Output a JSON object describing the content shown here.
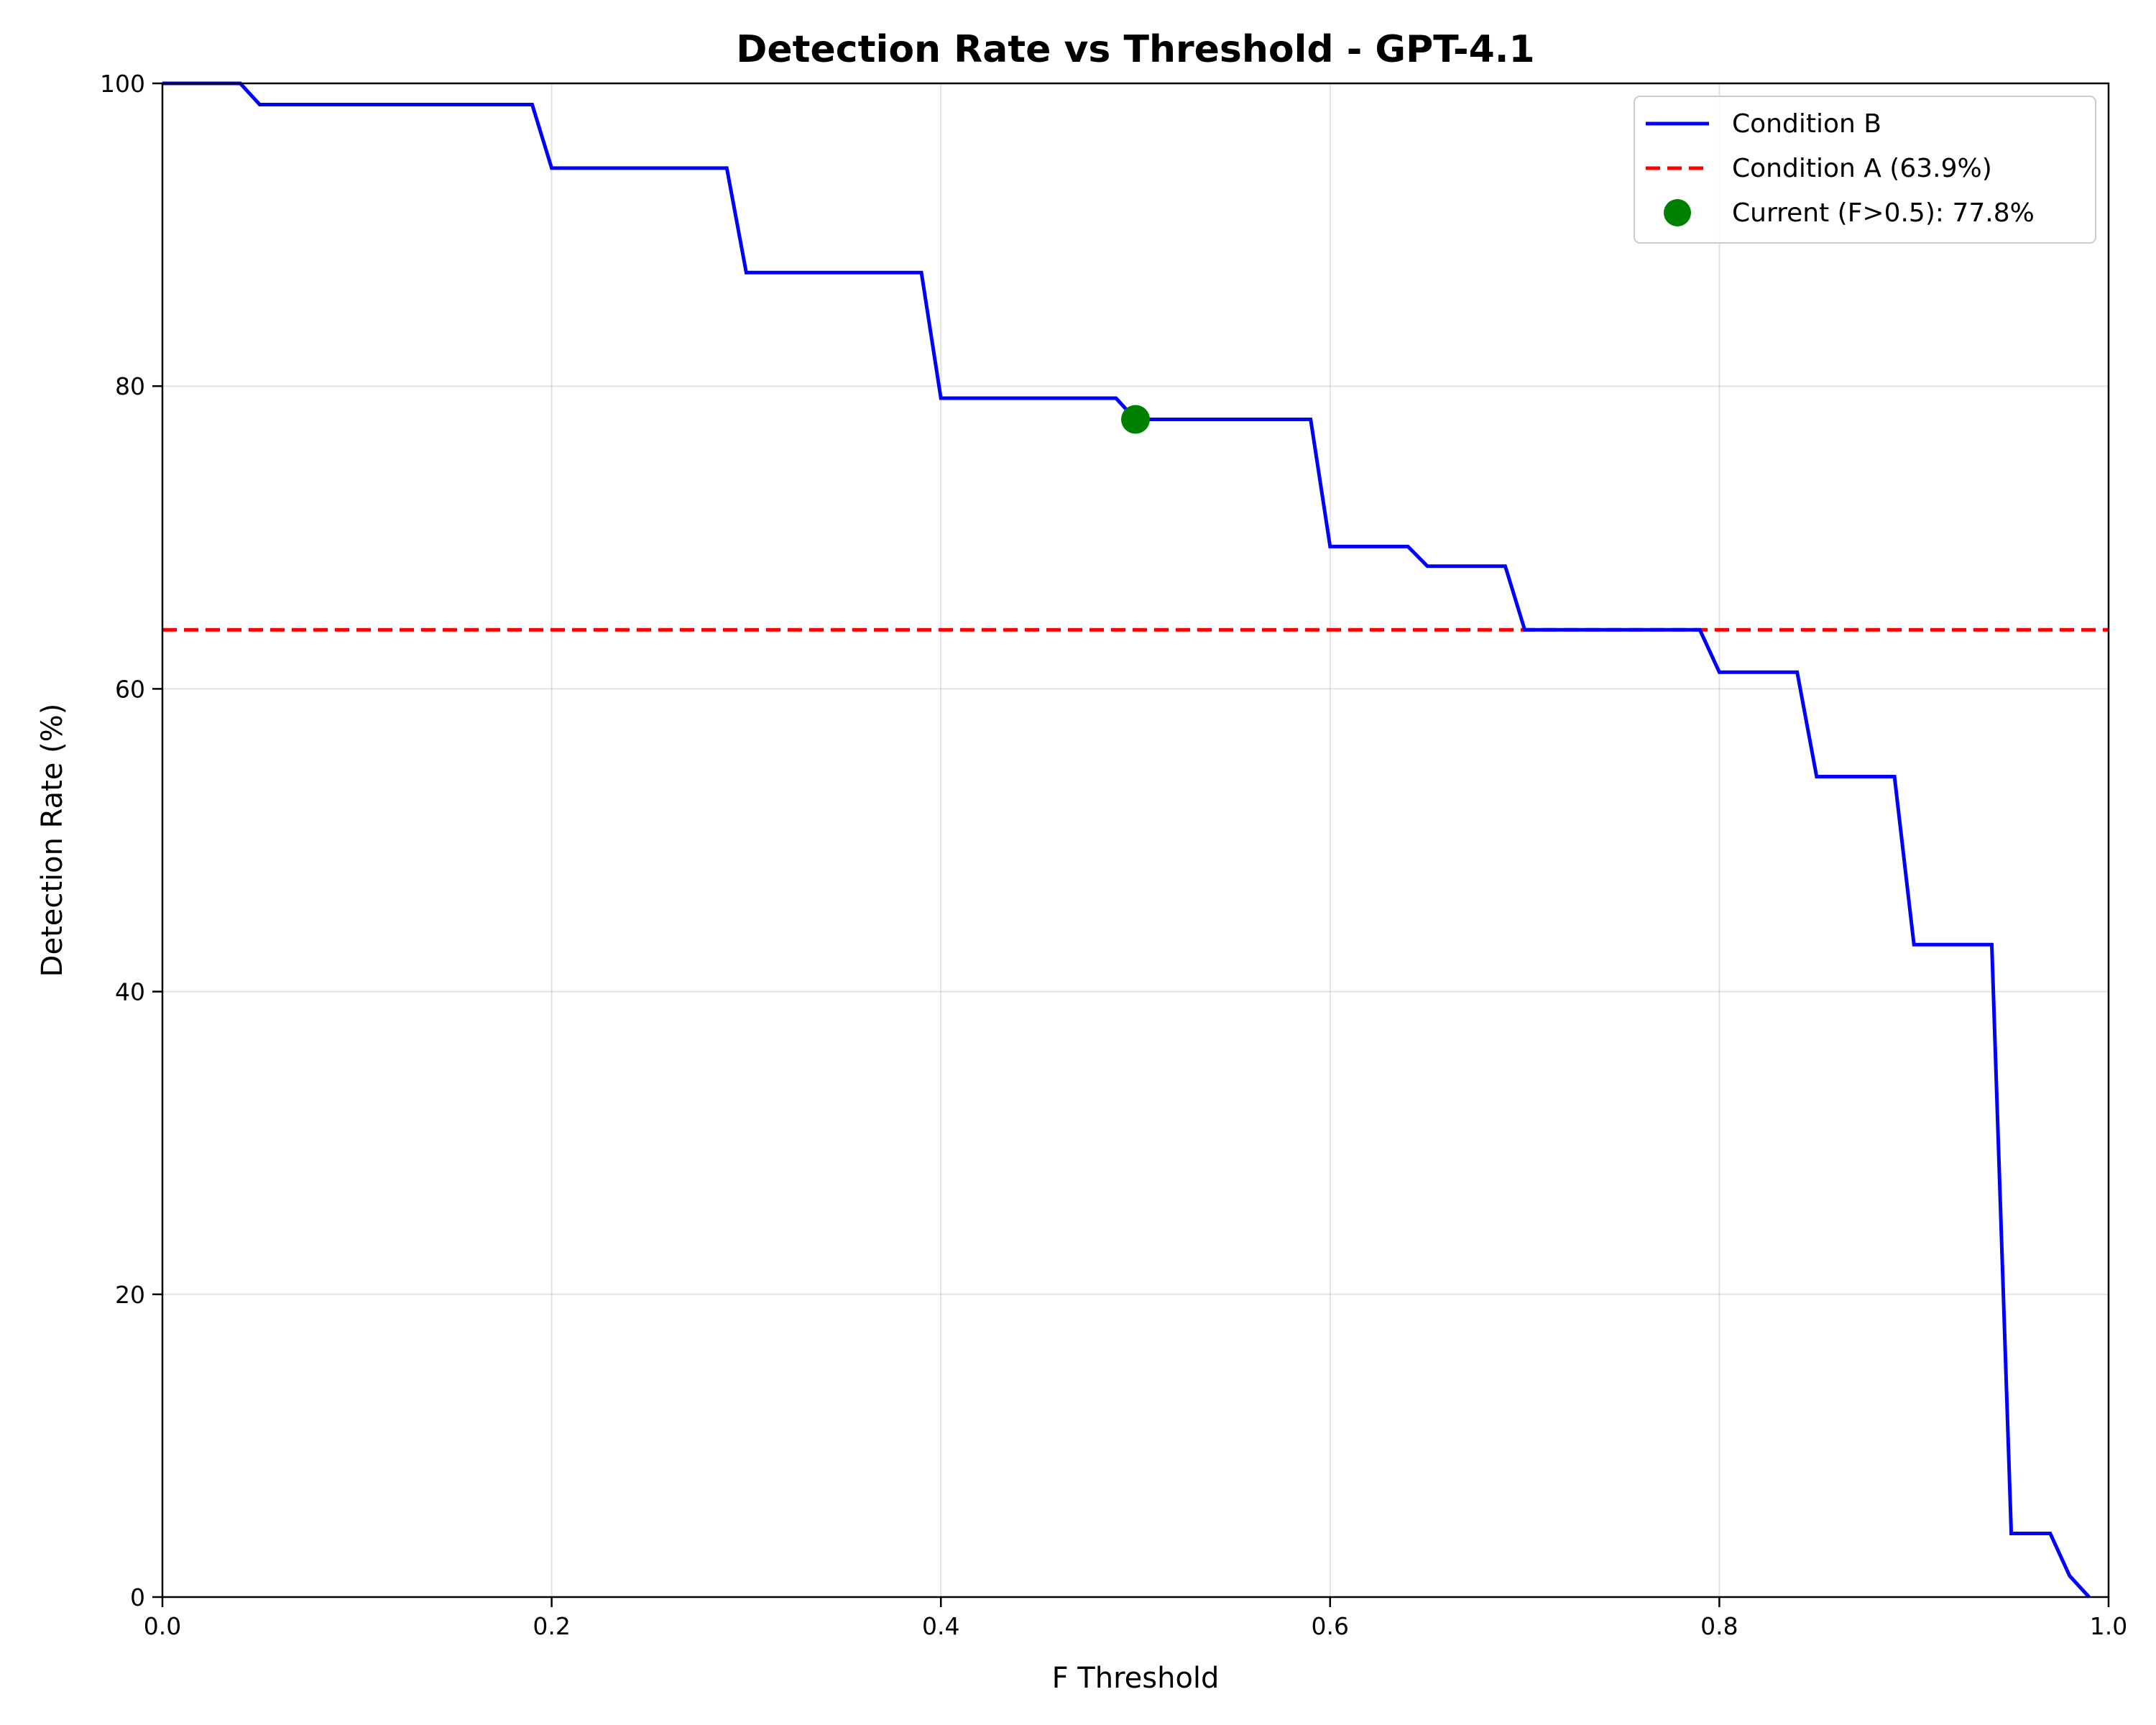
{
  "chart_data": {
    "type": "line",
    "title": "Detection Rate vs Threshold - GPT-4.1",
    "xlabel": "F Threshold",
    "ylabel": "Detection Rate (%)",
    "xlim": [
      0.0,
      1.0
    ],
    "ylim": [
      0,
      100
    ],
    "x_ticks": [
      "0.0",
      "0.2",
      "0.4",
      "0.6",
      "0.8",
      "1.0"
    ],
    "y_ticks": [
      "0",
      "20",
      "40",
      "60",
      "80",
      "100"
    ],
    "grid": true,
    "legend_position": "top-right",
    "series": [
      {
        "name": "Condition B",
        "style": "solid",
        "color": "#0000ff",
        "points": [
          [
            0.0,
            100.0
          ],
          [
            0.04,
            100.0
          ],
          [
            0.05,
            98.6
          ],
          [
            0.19,
            98.6
          ],
          [
            0.2,
            94.4
          ],
          [
            0.29,
            94.4
          ],
          [
            0.3,
            87.5
          ],
          [
            0.39,
            87.5
          ],
          [
            0.4,
            79.2
          ],
          [
            0.49,
            79.2
          ],
          [
            0.5,
            77.8
          ],
          [
            0.59,
            77.8
          ],
          [
            0.6,
            69.4
          ],
          [
            0.64,
            69.4
          ],
          [
            0.65,
            68.1
          ],
          [
            0.69,
            68.1
          ],
          [
            0.7,
            63.9
          ],
          [
            0.79,
            63.9
          ],
          [
            0.8,
            61.1
          ],
          [
            0.84,
            61.1
          ],
          [
            0.85,
            54.2
          ],
          [
            0.89,
            54.2
          ],
          [
            0.9,
            43.1
          ],
          [
            0.94,
            43.1
          ],
          [
            0.95,
            4.2
          ],
          [
            0.97,
            4.2
          ],
          [
            0.98,
            1.4
          ],
          [
            0.99,
            0.0
          ]
        ]
      },
      {
        "name": "Condition A (63.9%)",
        "style": "dashed",
        "color": "#ff0000",
        "y": 63.9
      },
      {
        "name": "Current (F>0.5): 77.8%",
        "style": "marker",
        "color": "#008000",
        "x": 0.5,
        "y": 77.8
      }
    ]
  }
}
